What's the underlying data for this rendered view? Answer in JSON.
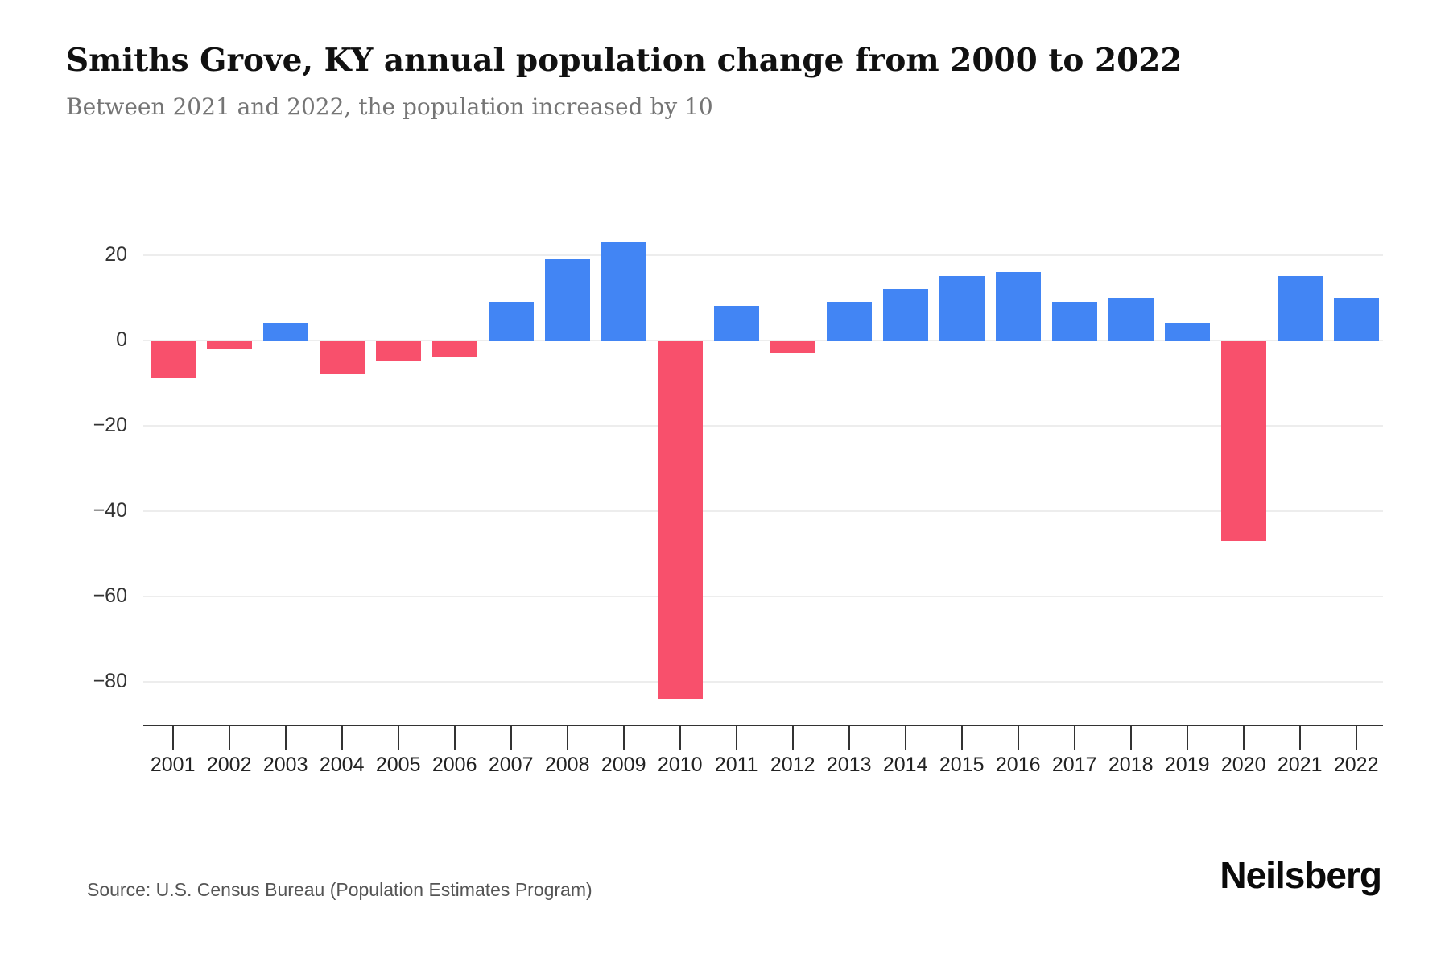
{
  "chart_data": {
    "type": "bar",
    "title": "Smiths Grove, KY annual population change from 2000 to 2022",
    "subtitle": "Between 2021 and 2022, the population increased by 10",
    "categories": [
      "2001",
      "2002",
      "2003",
      "2004",
      "2005",
      "2006",
      "2007",
      "2008",
      "2009",
      "2010",
      "2011",
      "2012",
      "2013",
      "2014",
      "2015",
      "2016",
      "2017",
      "2018",
      "2019",
      "2020",
      "2021",
      "2022"
    ],
    "values": [
      -9,
      -2,
      4,
      -8,
      -5,
      -4,
      9,
      19,
      23,
      -84,
      8,
      -3,
      9,
      12,
      15,
      16,
      9,
      10,
      4,
      -47,
      15,
      10
    ],
    "xlabel": "",
    "ylabel": "",
    "ylim": [
      -90,
      25
    ],
    "yticks": [
      20,
      0,
      -20,
      -40,
      -60,
      -80
    ],
    "grid": true,
    "legend_position": "none",
    "positive_color": "#4285f4",
    "negative_color": "#f8506c"
  },
  "footer": {
    "source": "Source: U.S. Census Bureau (Population Estimates Program)",
    "brand": "Neilsberg"
  }
}
